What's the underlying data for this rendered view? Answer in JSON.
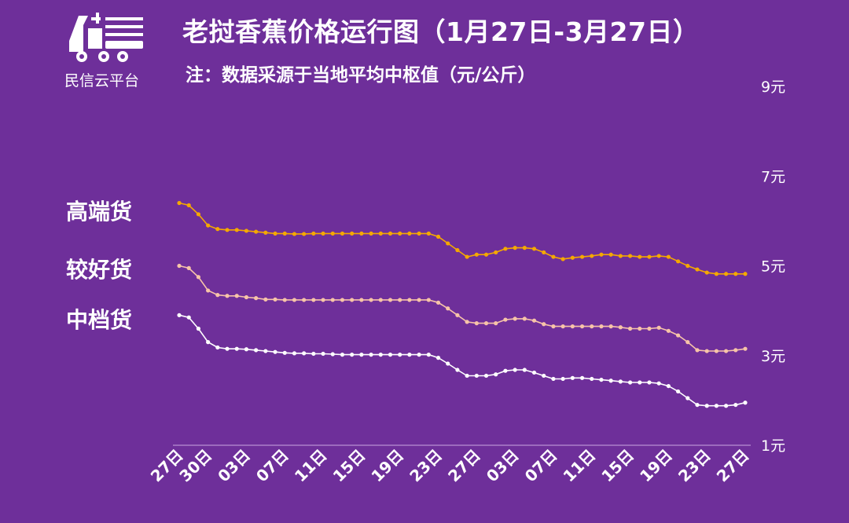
{
  "brand": {
    "name": "民信云平台",
    "logo_icon": "truck-logo-icon"
  },
  "header": {
    "title": "老挝香蕉价格运行图（1月27日-3月27日）",
    "subtitle": "注：数据采源于当地平均中枢值（元/公斤）"
  },
  "colors": {
    "background": "#6e2f9a",
    "high": "#f5a800",
    "mid": "#f7c4a8",
    "low": "#ffffff",
    "axis": "#c9a7e0"
  },
  "chart_data": {
    "type": "line",
    "title": "老挝香蕉价格运行图（1月27日-3月27日）",
    "ylabel": "元/公斤",
    "ylim": [
      1,
      9
    ],
    "y_ticks": [
      "9元",
      "7元",
      "5元",
      "3元",
      "1元"
    ],
    "y_tick_values": [
      9,
      7,
      5,
      3,
      1
    ],
    "x_tick_labels": [
      "27日",
      "30日",
      "03日",
      "07日",
      "11日",
      "15日",
      "19日",
      "23日",
      "27日",
      "03日",
      "07日",
      "11日",
      "15日",
      "19日",
      "23日",
      "27日"
    ],
    "x_tick_indices": [
      0,
      3,
      7,
      11,
      15,
      19,
      23,
      27,
      31,
      35,
      39,
      43,
      47,
      51,
      55,
      59
    ],
    "x": [
      "1/27",
      "1/28",
      "1/29",
      "1/30",
      "1/31",
      "2/1",
      "2/2",
      "2/3",
      "2/4",
      "2/5",
      "2/6",
      "2/7",
      "2/8",
      "2/9",
      "2/10",
      "2/11",
      "2/12",
      "2/13",
      "2/14",
      "2/15",
      "2/16",
      "2/17",
      "2/18",
      "2/19",
      "2/20",
      "2/21",
      "2/22",
      "2/23",
      "2/24",
      "2/25",
      "2/26",
      "2/27",
      "2/28",
      "3/1",
      "3/2",
      "3/3",
      "3/4",
      "3/5",
      "3/6",
      "3/7",
      "3/8",
      "3/9",
      "3/10",
      "3/11",
      "3/12",
      "3/13",
      "3/14",
      "3/15",
      "3/16",
      "3/17",
      "3/18",
      "3/19",
      "3/20",
      "3/21",
      "3/22",
      "3/23",
      "3/24",
      "3/25",
      "3/26",
      "3/27"
    ],
    "series": [
      {
        "name": "高端货",
        "color": "#f5a800",
        "values": [
          6.4,
          6.35,
          6.15,
          5.9,
          5.82,
          5.8,
          5.8,
          5.78,
          5.76,
          5.74,
          5.72,
          5.72,
          5.71,
          5.71,
          5.72,
          5.72,
          5.72,
          5.72,
          5.72,
          5.72,
          5.72,
          5.72,
          5.72,
          5.72,
          5.72,
          5.72,
          5.72,
          5.65,
          5.5,
          5.35,
          5.2,
          5.25,
          5.25,
          5.3,
          5.38,
          5.4,
          5.4,
          5.38,
          5.3,
          5.2,
          5.15,
          5.18,
          5.2,
          5.22,
          5.25,
          5.25,
          5.22,
          5.22,
          5.2,
          5.2,
          5.22,
          5.2,
          5.1,
          5.0,
          4.92,
          4.85,
          4.82,
          4.82,
          4.82,
          4.82
        ]
      },
      {
        "name": "较好货",
        "color": "#f7c4a8",
        "values": [
          5.0,
          4.95,
          4.75,
          4.45,
          4.35,
          4.33,
          4.33,
          4.3,
          4.28,
          4.25,
          4.25,
          4.24,
          4.24,
          4.24,
          4.24,
          4.24,
          4.24,
          4.24,
          4.24,
          4.24,
          4.24,
          4.24,
          4.24,
          4.24,
          4.24,
          4.24,
          4.24,
          4.18,
          4.05,
          3.9,
          3.75,
          3.72,
          3.72,
          3.72,
          3.8,
          3.82,
          3.82,
          3.78,
          3.7,
          3.65,
          3.65,
          3.65,
          3.65,
          3.65,
          3.65,
          3.65,
          3.63,
          3.6,
          3.6,
          3.6,
          3.62,
          3.55,
          3.45,
          3.3,
          3.12,
          3.1,
          3.1,
          3.1,
          3.12,
          3.15
        ]
      },
      {
        "name": "中档货",
        "color": "#ffffff",
        "values": [
          3.9,
          3.85,
          3.6,
          3.3,
          3.18,
          3.15,
          3.15,
          3.14,
          3.12,
          3.1,
          3.08,
          3.06,
          3.05,
          3.05,
          3.04,
          3.04,
          3.03,
          3.02,
          3.02,
          3.02,
          3.02,
          3.02,
          3.02,
          3.02,
          3.02,
          3.02,
          3.02,
          2.95,
          2.82,
          2.68,
          2.55,
          2.55,
          2.55,
          2.58,
          2.66,
          2.68,
          2.68,
          2.62,
          2.55,
          2.48,
          2.48,
          2.5,
          2.5,
          2.48,
          2.46,
          2.44,
          2.42,
          2.4,
          2.4,
          2.4,
          2.38,
          2.32,
          2.2,
          2.05,
          1.9,
          1.88,
          1.88,
          1.88,
          1.9,
          1.95
        ]
      }
    ]
  }
}
